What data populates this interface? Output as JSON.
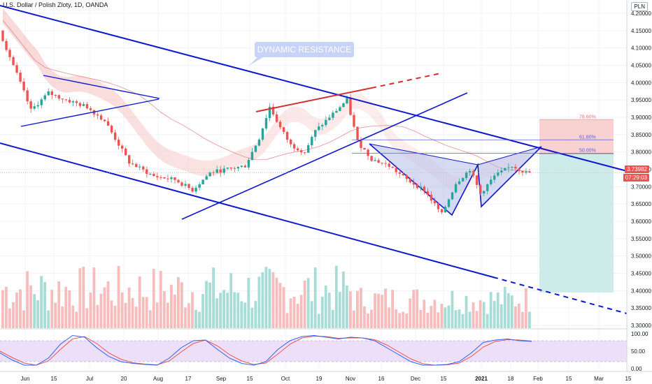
{
  "header": {
    "title": "U.S. Dollar / Polish Zloty, 1D, OANDA",
    "currency": "PLN"
  },
  "price_tags": {
    "last_price": "3.73982",
    "countdown": "07:29:03"
  },
  "annotation": {
    "dynamic_resistance": "DYNAMIC RESISTANCE"
  },
  "fib_levels": [
    {
      "label": "78.60%",
      "price": 3.893
    },
    {
      "label": "61.80%",
      "price": 3.835
    },
    {
      "label": "50.00%",
      "price": 3.796
    }
  ],
  "colors": {
    "trendline": "#0d18cf",
    "resistance_red": "#d32f2f",
    "bull": "#26a69a",
    "bear": "#ef5350",
    "volume_bull": "#a7ddd6",
    "volume_bear": "#f7bcbc",
    "stop_zone": "#f8c9c9",
    "target_zone": "#c8e9e5",
    "pattern_fill": "#b5bce8",
    "rsi_bg": "#ecdff7",
    "stoch_k": "#2962ff",
    "stoch_d": "#ef5350"
  },
  "chart_data": {
    "type": "candlestick",
    "x_ticks": [
      "Jun",
      "15",
      "Jul",
      "20",
      "Aug",
      "17",
      "Sep",
      "15",
      "Oct",
      "19",
      "Nov",
      "16",
      "Dec",
      "15",
      "2021",
      "18",
      "Feb",
      "15",
      "Mar",
      "15"
    ],
    "y_ticks": [
      "4.20000",
      "4.15000",
      "4.10000",
      "4.05000",
      "4.00000",
      "3.95000",
      "3.90000",
      "3.85000",
      "3.80000",
      "3.75000",
      "3.70000",
      "3.65000",
      "3.60000",
      "3.55000",
      "3.50000",
      "3.45000",
      "3.40000",
      "3.35000",
      "3.30000"
    ],
    "ylim": [
      3.29,
      4.22
    ],
    "oscillator_ticks": [
      "100.00",
      "50.00",
      "0.00"
    ],
    "close_path": [
      {
        "t": 0,
        "p": 4.15
      },
      {
        "t": 4,
        "p": 4.05
      },
      {
        "t": 9,
        "p": 3.92
      },
      {
        "t": 14,
        "p": 3.97
      },
      {
        "t": 19,
        "p": 3.95
      },
      {
        "t": 25,
        "p": 3.93
      },
      {
        "t": 30,
        "p": 3.89
      },
      {
        "t": 37,
        "p": 3.77
      },
      {
        "t": 44,
        "p": 3.73
      },
      {
        "t": 50,
        "p": 3.72
      },
      {
        "t": 55,
        "p": 3.69
      },
      {
        "t": 60,
        "p": 3.74
      },
      {
        "t": 65,
        "p": 3.75
      },
      {
        "t": 70,
        "p": 3.76
      },
      {
        "t": 74,
        "p": 3.84
      },
      {
        "t": 77,
        "p": 3.93
      },
      {
        "t": 80,
        "p": 3.87
      },
      {
        "t": 83,
        "p": 3.82
      },
      {
        "t": 87,
        "p": 3.8
      },
      {
        "t": 90,
        "p": 3.86
      },
      {
        "t": 95,
        "p": 3.91
      },
      {
        "t": 99,
        "p": 3.95
      },
      {
        "t": 102,
        "p": 3.83
      },
      {
        "t": 106,
        "p": 3.78
      },
      {
        "t": 111,
        "p": 3.76
      },
      {
        "t": 116,
        "p": 3.72
      },
      {
        "t": 121,
        "p": 3.69
      },
      {
        "t": 126,
        "p": 3.62
      },
      {
        "t": 130,
        "p": 3.71
      },
      {
        "t": 134,
        "p": 3.75
      },
      {
        "t": 137,
        "p": 3.68
      },
      {
        "t": 141,
        "p": 3.73
      },
      {
        "t": 146,
        "p": 3.76
      },
      {
        "t": 150,
        "p": 3.74
      }
    ],
    "volume_scale": [
      0,
      1
    ],
    "stochastic": {
      "k": [
        0.45,
        0.25,
        0.1,
        0.1,
        0.3,
        0.7,
        0.95,
        0.9,
        0.6,
        0.35,
        0.2,
        0.15,
        0.12,
        0.1,
        0.3,
        0.6,
        0.8,
        0.82,
        0.55,
        0.3,
        0.15,
        0.1,
        0.2,
        0.55,
        0.8,
        0.92,
        0.95,
        0.9,
        0.85,
        0.9,
        0.88,
        0.8,
        0.6,
        0.4,
        0.2,
        0.1,
        0.1,
        0.12,
        0.2,
        0.45,
        0.75,
        0.82,
        0.85,
        0.8,
        0.78
      ],
      "d": [
        0.5,
        0.32,
        0.16,
        0.1,
        0.22,
        0.55,
        0.85,
        0.92,
        0.72,
        0.45,
        0.27,
        0.17,
        0.13,
        0.11,
        0.22,
        0.48,
        0.72,
        0.82,
        0.65,
        0.4,
        0.22,
        0.12,
        0.16,
        0.42,
        0.7,
        0.88,
        0.93,
        0.92,
        0.87,
        0.88,
        0.88,
        0.83,
        0.68,
        0.48,
        0.28,
        0.14,
        0.1,
        0.11,
        0.16,
        0.35,
        0.62,
        0.78,
        0.83,
        0.82,
        0.79
      ]
    }
  }
}
